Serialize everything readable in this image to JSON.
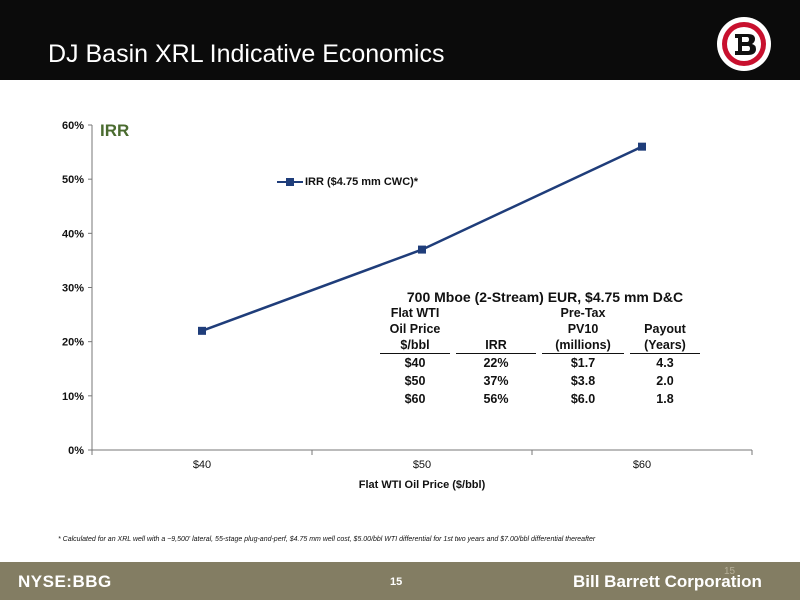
{
  "header": {
    "title": "DJ Basin XRL Indicative Economics",
    "background": "#0b0b0b",
    "logo_icon": "company-b-logo"
  },
  "chart_data": {
    "type": "line",
    "title": "IRR",
    "categories": [
      "$40",
      "$50",
      "$60"
    ],
    "series": [
      {
        "name": "IRR ($4.75 mm CWC)*",
        "values": [
          0.22,
          0.37,
          0.56
        ],
        "color": "#1f3d7a"
      }
    ],
    "xlabel": "Flat WTI Oil Price ($/bbl)",
    "ylabel": "",
    "ylim": [
      0,
      0.6
    ],
    "yticks": [
      "0%",
      "10%",
      "20%",
      "30%",
      "40%",
      "50%",
      "60%"
    ],
    "grid": false,
    "legend": "top-center"
  },
  "economics_table": {
    "title": "700 Mboe (2-Stream) EUR, $4.75 mm D&C",
    "headers": [
      [
        "Flat WTI",
        "Oil Price",
        "$/bbl"
      ],
      [
        "IRR"
      ],
      [
        "Pre-Tax",
        "PV10",
        "(millions)"
      ],
      [
        "Payout",
        "(Years)"
      ]
    ],
    "rows": [
      [
        "$40",
        "22%",
        "$1.7",
        "4.3"
      ],
      [
        "$50",
        "37%",
        "$3.8",
        "2.0"
      ],
      [
        "$60",
        "56%",
        "$6.0",
        "1.8"
      ]
    ]
  },
  "footnote": "* Calculated for an XRL well with a ~9,500' lateral, 55-stage plug-and-perf, $4.75 mm well cost, $5.00/bbl WTI differential for 1st two years and $7.00/bbl differential thereafter",
  "footer": {
    "ticker": "NYSE:BBG",
    "page_number": "15",
    "company": "Bill Barrett Corporation",
    "ghost_page_number": "15",
    "background": "#837d63"
  }
}
